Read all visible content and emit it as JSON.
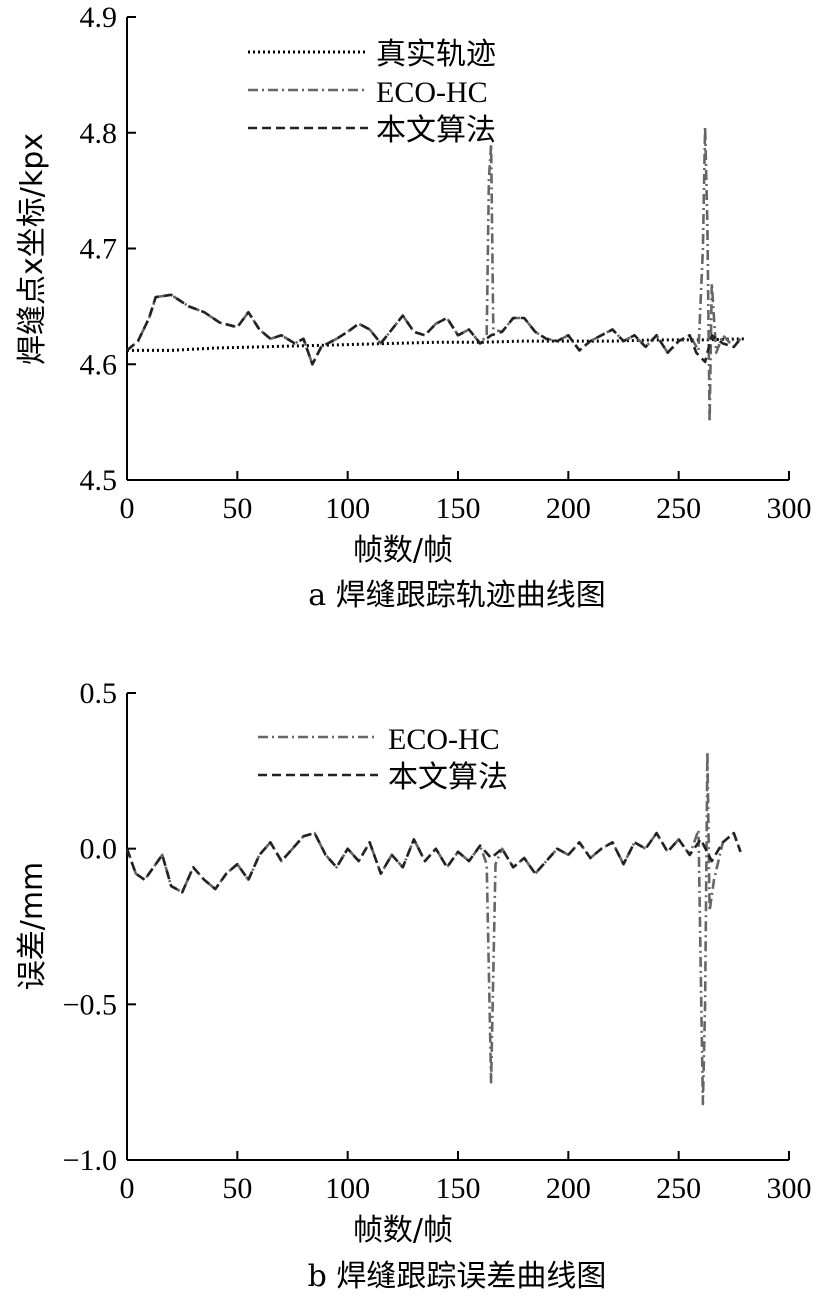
{
  "chart_data": [
    {
      "type": "line",
      "caption": "a 焊缝跟踪轨迹曲线图",
      "xlabel": "帧数/帧",
      "ylabel": "焊缝点x坐标/kpx",
      "xlim": [
        0,
        300
      ],
      "ylim": [
        4.5,
        4.9
      ],
      "xticks": [
        0,
        50,
        100,
        150,
        200,
        250,
        300
      ],
      "yticks": [
        4.5,
        4.6,
        4.7,
        4.8,
        4.9
      ],
      "xtick_labels": [
        "0",
        "50",
        "100",
        "150",
        "200",
        "250",
        "300"
      ],
      "ytick_labels": [
        "4.5",
        "4.6",
        "4.7",
        "4.8",
        "4.9"
      ],
      "legend_position": "top-center",
      "series": [
        {
          "name": "真实轨迹",
          "style": "dotted",
          "color": "#000000",
          "points": [
            [
              0,
              4.612
            ],
            [
              20,
              4.612
            ],
            [
              40,
              4.614
            ],
            [
              60,
              4.615
            ],
            [
              80,
              4.616
            ],
            [
              100,
              4.617
            ],
            [
              120,
              4.618
            ],
            [
              140,
              4.619
            ],
            [
              160,
              4.619
            ],
            [
              180,
              4.62
            ],
            [
              200,
              4.62
            ],
            [
              220,
              4.62
            ],
            [
              240,
              4.621
            ],
            [
              260,
              4.621
            ],
            [
              280,
              4.622
            ]
          ]
        },
        {
          "name": "ECO-HC",
          "style": "dashdot",
          "color": "#666666",
          "points": [
            [
              0,
              4.612
            ],
            [
              5,
              4.62
            ],
            [
              10,
              4.64
            ],
            [
              13,
              4.658
            ],
            [
              20,
              4.66
            ],
            [
              28,
              4.65
            ],
            [
              35,
              4.645
            ],
            [
              42,
              4.636
            ],
            [
              50,
              4.632
            ],
            [
              55,
              4.645
            ],
            [
              60,
              4.63
            ],
            [
              65,
              4.622
            ],
            [
              70,
              4.625
            ],
            [
              76,
              4.618
            ],
            [
              80,
              4.622
            ],
            [
              84,
              4.6
            ],
            [
              88,
              4.615
            ],
            [
              95,
              4.622
            ],
            [
              100,
              4.628
            ],
            [
              105,
              4.635
            ],
            [
              110,
              4.63
            ],
            [
              115,
              4.618
            ],
            [
              120,
              4.63
            ],
            [
              125,
              4.642
            ],
            [
              130,
              4.628
            ],
            [
              135,
              4.625
            ],
            [
              140,
              4.635
            ],
            [
              145,
              4.64
            ],
            [
              150,
              4.625
            ],
            [
              155,
              4.63
            ],
            [
              160,
              4.618
            ],
            [
              163,
              4.625
            ],
            [
              164,
              4.76
            ],
            [
              165,
              4.79
            ],
            [
              166,
              4.63
            ],
            [
              170,
              4.628
            ],
            [
              175,
              4.64
            ],
            [
              180,
              4.64
            ],
            [
              185,
              4.628
            ],
            [
              190,
              4.622
            ],
            [
              195,
              4.62
            ],
            [
              200,
              4.625
            ],
            [
              205,
              4.612
            ],
            [
              210,
              4.62
            ],
            [
              215,
              4.625
            ],
            [
              220,
              4.63
            ],
            [
              225,
              4.62
            ],
            [
              230,
              4.625
            ],
            [
              235,
              4.615
            ],
            [
              240,
              4.625
            ],
            [
              245,
              4.61
            ],
            [
              250,
              4.62
            ],
            [
              255,
              4.625
            ],
            [
              259,
              4.612
            ],
            [
              261,
              4.7
            ],
            [
              262,
              4.805
            ],
            [
              263,
              4.72
            ],
            [
              264,
              4.55
            ],
            [
              265,
              4.67
            ],
            [
              267,
              4.61
            ],
            [
              270,
              4.625
            ],
            [
              275,
              4.615
            ],
            [
              278,
              4.622
            ]
          ]
        },
        {
          "name": "本文算法",
          "style": "dashed",
          "color": "#222222",
          "points": [
            [
              0,
              4.612
            ],
            [
              5,
              4.62
            ],
            [
              10,
              4.64
            ],
            [
              13,
              4.658
            ],
            [
              20,
              4.66
            ],
            [
              28,
              4.65
            ],
            [
              35,
              4.645
            ],
            [
              42,
              4.636
            ],
            [
              50,
              4.632
            ],
            [
              55,
              4.645
            ],
            [
              60,
              4.63
            ],
            [
              65,
              4.622
            ],
            [
              70,
              4.625
            ],
            [
              76,
              4.618
            ],
            [
              80,
              4.622
            ],
            [
              84,
              4.6
            ],
            [
              88,
              4.615
            ],
            [
              95,
              4.622
            ],
            [
              100,
              4.628
            ],
            [
              105,
              4.635
            ],
            [
              110,
              4.63
            ],
            [
              115,
              4.618
            ],
            [
              120,
              4.63
            ],
            [
              125,
              4.642
            ],
            [
              130,
              4.628
            ],
            [
              135,
              4.625
            ],
            [
              140,
              4.635
            ],
            [
              145,
              4.64
            ],
            [
              150,
              4.625
            ],
            [
              155,
              4.63
            ],
            [
              160,
              4.618
            ],
            [
              165,
              4.625
            ],
            [
              170,
              4.628
            ],
            [
              175,
              4.64
            ],
            [
              180,
              4.64
            ],
            [
              185,
              4.628
            ],
            [
              190,
              4.622
            ],
            [
              195,
              4.62
            ],
            [
              200,
              4.625
            ],
            [
              205,
              4.612
            ],
            [
              210,
              4.62
            ],
            [
              215,
              4.625
            ],
            [
              220,
              4.63
            ],
            [
              225,
              4.62
            ],
            [
              230,
              4.625
            ],
            [
              235,
              4.615
            ],
            [
              240,
              4.625
            ],
            [
              245,
              4.61
            ],
            [
              250,
              4.62
            ],
            [
              255,
              4.625
            ],
            [
              258,
              4.61
            ],
            [
              262,
              4.602
            ],
            [
              265,
              4.625
            ],
            [
              270,
              4.618
            ],
            [
              275,
              4.615
            ],
            [
              278,
              4.622
            ]
          ]
        }
      ]
    },
    {
      "type": "line",
      "caption": "b 焊缝跟踪误差曲线图",
      "xlabel": "帧数/帧",
      "ylabel": "误差/mm",
      "xlim": [
        0,
        300
      ],
      "ylim": [
        -1.0,
        0.5
      ],
      "xticks": [
        0,
        50,
        100,
        150,
        200,
        250,
        300
      ],
      "yticks": [
        -1.0,
        -0.5,
        0.0,
        0.5
      ],
      "xtick_labels": [
        "0",
        "50",
        "100",
        "150",
        "200",
        "250",
        "300"
      ],
      "ytick_labels": [
        "−1.0",
        "−0.5",
        "0.0",
        "0.5"
      ],
      "legend_position": "top-center",
      "series": [
        {
          "name": "ECO-HC",
          "style": "dashdot",
          "color": "#666666",
          "points": [
            [
              0,
              0.0
            ],
            [
              4,
              -0.08
            ],
            [
              8,
              -0.1
            ],
            [
              12,
              -0.06
            ],
            [
              16,
              -0.02
            ],
            [
              20,
              -0.12
            ],
            [
              25,
              -0.14
            ],
            [
              30,
              -0.06
            ],
            [
              35,
              -0.1
            ],
            [
              40,
              -0.13
            ],
            [
              45,
              -0.08
            ],
            [
              50,
              -0.05
            ],
            [
              55,
              -0.1
            ],
            [
              60,
              -0.02
            ],
            [
              65,
              0.02
            ],
            [
              70,
              -0.04
            ],
            [
              75,
              0.0
            ],
            [
              80,
              0.04
            ],
            [
              85,
              0.05
            ],
            [
              90,
              -0.02
            ],
            [
              95,
              -0.06
            ],
            [
              100,
              0.0
            ],
            [
              105,
              -0.04
            ],
            [
              110,
              0.02
            ],
            [
              115,
              -0.08
            ],
            [
              120,
              -0.02
            ],
            [
              125,
              -0.06
            ],
            [
              130,
              0.03
            ],
            [
              135,
              -0.04
            ],
            [
              140,
              0.0
            ],
            [
              145,
              -0.06
            ],
            [
              150,
              -0.01
            ],
            [
              155,
              -0.04
            ],
            [
              160,
              0.01
            ],
            [
              163,
              -0.05
            ],
            [
              165,
              -0.75
            ],
            [
              167,
              -0.05
            ],
            [
              170,
              0.0
            ],
            [
              175,
              -0.06
            ],
            [
              180,
              -0.03
            ],
            [
              185,
              -0.08
            ],
            [
              190,
              -0.04
            ],
            [
              195,
              0.0
            ],
            [
              200,
              -0.02
            ],
            [
              205,
              0.02
            ],
            [
              210,
              -0.03
            ],
            [
              215,
              0.0
            ],
            [
              220,
              0.02
            ],
            [
              225,
              -0.05
            ],
            [
              230,
              0.02
            ],
            [
              235,
              0.0
            ],
            [
              240,
              0.05
            ],
            [
              245,
              -0.01
            ],
            [
              250,
              0.03
            ],
            [
              255,
              -0.02
            ],
            [
              259,
              0.06
            ],
            [
              261,
              -0.82
            ],
            [
              262,
              -0.5
            ],
            [
              263,
              0.31
            ],
            [
              264,
              -0.2
            ],
            [
              266,
              -0.1
            ],
            [
              270,
              0.02
            ],
            [
              275,
              0.05
            ],
            [
              278,
              -0.01
            ]
          ]
        },
        {
          "name": "本文算法",
          "style": "dashed",
          "color": "#222222",
          "points": [
            [
              0,
              0.0
            ],
            [
              4,
              -0.08
            ],
            [
              8,
              -0.1
            ],
            [
              12,
              -0.06
            ],
            [
              16,
              -0.02
            ],
            [
              20,
              -0.12
            ],
            [
              25,
              -0.14
            ],
            [
              30,
              -0.06
            ],
            [
              35,
              -0.1
            ],
            [
              40,
              -0.13
            ],
            [
              45,
              -0.08
            ],
            [
              50,
              -0.05
            ],
            [
              55,
              -0.1
            ],
            [
              60,
              -0.02
            ],
            [
              65,
              0.02
            ],
            [
              70,
              -0.04
            ],
            [
              75,
              0.0
            ],
            [
              80,
              0.04
            ],
            [
              85,
              0.05
            ],
            [
              90,
              -0.02
            ],
            [
              95,
              -0.06
            ],
            [
              100,
              0.0
            ],
            [
              105,
              -0.04
            ],
            [
              110,
              0.02
            ],
            [
              115,
              -0.08
            ],
            [
              120,
              -0.02
            ],
            [
              125,
              -0.06
            ],
            [
              130,
              0.03
            ],
            [
              135,
              -0.04
            ],
            [
              140,
              0.0
            ],
            [
              145,
              -0.06
            ],
            [
              150,
              -0.01
            ],
            [
              155,
              -0.04
            ],
            [
              160,
              0.01
            ],
            [
              165,
              -0.03
            ],
            [
              170,
              0.0
            ],
            [
              175,
              -0.06
            ],
            [
              180,
              -0.03
            ],
            [
              185,
              -0.08
            ],
            [
              190,
              -0.04
            ],
            [
              195,
              0.0
            ],
            [
              200,
              -0.02
            ],
            [
              205,
              0.02
            ],
            [
              210,
              -0.03
            ],
            [
              215,
              0.0
            ],
            [
              220,
              0.02
            ],
            [
              225,
              -0.05
            ],
            [
              230,
              0.02
            ],
            [
              235,
              0.0
            ],
            [
              240,
              0.05
            ],
            [
              245,
              -0.01
            ],
            [
              250,
              0.03
            ],
            [
              255,
              -0.02
            ],
            [
              260,
              0.03
            ],
            [
              265,
              -0.04
            ],
            [
              270,
              0.02
            ],
            [
              275,
              0.05
            ],
            [
              278,
              -0.01
            ]
          ]
        }
      ]
    }
  ]
}
